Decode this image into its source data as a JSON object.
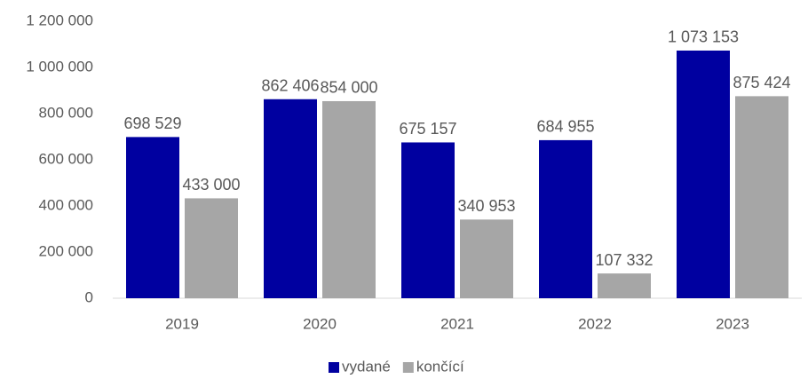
{
  "chart_data": {
    "type": "bar",
    "categories": [
      "2019",
      "2020",
      "2021",
      "2022",
      "2023"
    ],
    "series": [
      {
        "name": "vydané",
        "color": "#0000a0",
        "values": [
          698529,
          862406,
          675157,
          684955,
          1073153
        ],
        "value_labels": [
          "698 529",
          "862 406",
          "675 157",
          "684 955",
          "1 073 153"
        ]
      },
      {
        "name": "končící",
        "color": "#a6a6a6",
        "values": [
          433000,
          854000,
          340953,
          107332,
          875424
        ],
        "value_labels": [
          "433 000",
          "854 000",
          "340 953",
          "107 332",
          "875 424"
        ]
      }
    ],
    "ylim": [
      0,
      1200000
    ],
    "yticks": [
      0,
      {
        "value": 200000,
        "label": "200 000"
      },
      {
        "value": 400000,
        "label": "400 000"
      },
      {
        "value": 600000,
        "label": "600 000"
      },
      {
        "value": 800000,
        "label": "800 000"
      },
      {
        "value": 1000000,
        "label": "1 000 000"
      },
      {
        "value": 1200000,
        "label": "1 200 000"
      }
    ],
    "grid": false,
    "legend": "bottom"
  }
}
